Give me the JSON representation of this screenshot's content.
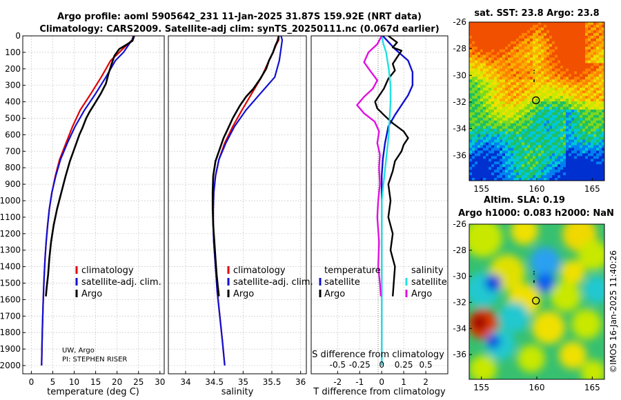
{
  "figure": {
    "title_line1": "Argo profile: aoml 5905642_231 11-Jan-2025 31.87S 159.92E (NRT data)",
    "title_line2": "Climatology: CARS2009. Satellite-adj clim: synTS_20250111.nc (0.067d earlier)",
    "credit_line1": "UW, Argo",
    "credit_line2": "PI: STEPHEN RISER",
    "copyright": "©IMOS 16-Jan-2025 11:40:26"
  },
  "colors": {
    "climatology": "#e00000",
    "satellite": "#1010d0",
    "argo": "#000000",
    "temp_diff": "#e010e0",
    "sal_diff": "#20e0e0"
  },
  "chart_data": [
    {
      "type": "line",
      "id": "temperature",
      "xlabel": "temperature (deg C)",
      "ylabel": "",
      "xlim": [
        -2,
        31
      ],
      "ylim": [
        2050,
        0
      ],
      "xticks": [
        0,
        5,
        10,
        15,
        20,
        25,
        30
      ],
      "yticks": [
        0,
        100,
        200,
        300,
        400,
        500,
        600,
        700,
        800,
        900,
        1000,
        1100,
        1200,
        1300,
        1400,
        1500,
        1600,
        1700,
        1800,
        1900,
        2000
      ],
      "grid": true,
      "legend": [
        "climatology",
        "satellite-adj. clim.",
        "Argo"
      ],
      "series": [
        {
          "name": "climatology",
          "x": [
            23.8,
            23.5,
            22.5,
            20.5,
            18.5,
            16.3,
            13.9,
            11.4,
            9.6,
            8.1,
            6.6,
            5.6,
            4.8,
            4.2,
            3.8,
            3.45,
            3.2,
            3.0,
            2.85,
            2.72,
            2.6,
            2.5,
            2.4
          ],
          "y": [
            0,
            25,
            50,
            100,
            150,
            250,
            350,
            450,
            550,
            650,
            750,
            850,
            950,
            1050,
            1150,
            1250,
            1350,
            1450,
            1550,
            1650,
            1750,
            1850,
            2000
          ]
        },
        {
          "name": "satellite-adj. clim.",
          "x": [
            23.9,
            23.5,
            22.8,
            21.5,
            19.6,
            17.4,
            15.0,
            12.4,
            10.2,
            8.4,
            6.8,
            5.7,
            4.8,
            4.2,
            3.8,
            3.45,
            3.2,
            3.0,
            2.85,
            2.72,
            2.6,
            2.5,
            2.4
          ],
          "y": [
            0,
            25,
            50,
            100,
            150,
            250,
            350,
            450,
            550,
            650,
            750,
            850,
            950,
            1050,
            1150,
            1250,
            1350,
            1450,
            1550,
            1650,
            1750,
            1850,
            2000
          ]
        },
        {
          "name": "Argo",
          "x": [
            24.0,
            23.6,
            22.4,
            20.5,
            19.4,
            18.6,
            18.0,
            17.4,
            16.2,
            14.8,
            13.6,
            12.8,
            11.9,
            11.2,
            10.1,
            9.0,
            8.0,
            7.0,
            6.0,
            5.2,
            4.6,
            4.2,
            3.9,
            3.6,
            3.4
          ],
          "y": [
            0,
            30,
            50,
            80,
            120,
            180,
            230,
            290,
            350,
            410,
            460,
            500,
            560,
            600,
            680,
            760,
            850,
            950,
            1050,
            1150,
            1250,
            1350,
            1450,
            1520,
            1580
          ]
        }
      ]
    },
    {
      "type": "line",
      "id": "salinity",
      "xlabel": "salinity",
      "ylabel": "",
      "xlim": [
        33.7,
        36.1
      ],
      "ylim": [
        2050,
        0
      ],
      "xticks": [
        34,
        34.5,
        35,
        35.5,
        36
      ],
      "grid": true,
      "legend": [
        "climatology",
        "satellite-adj. clim.",
        "Argo"
      ],
      "series": [
        {
          "name": "climatology",
          "x": [
            35.62,
            35.62,
            35.58,
            35.52,
            35.45,
            35.32,
            35.15,
            34.98,
            34.82,
            34.68,
            34.58,
            34.52,
            34.49,
            34.48,
            34.48,
            34.49,
            34.51,
            34.53,
            34.55,
            34.58,
            34.61,
            34.64,
            34.68
          ],
          "y": [
            0,
            25,
            50,
            100,
            150,
            250,
            350,
            450,
            550,
            650,
            750,
            850,
            950,
            1050,
            1150,
            1250,
            1350,
            1450,
            1550,
            1650,
            1750,
            1850,
            2000
          ]
        },
        {
          "name": "satellite-adj. clim.",
          "x": [
            35.66,
            35.68,
            35.67,
            35.65,
            35.63,
            35.55,
            35.3,
            35.05,
            34.85,
            34.7,
            34.58,
            34.52,
            34.49,
            34.48,
            34.48,
            34.49,
            34.51,
            34.53,
            34.55,
            34.58,
            34.61,
            34.64,
            34.68
          ],
          "y": [
            0,
            25,
            50,
            100,
            150,
            250,
            350,
            450,
            550,
            650,
            750,
            850,
            950,
            1050,
            1150,
            1250,
            1350,
            1450,
            1550,
            1650,
            1750,
            1850,
            2000
          ]
        },
        {
          "name": "Argo",
          "x": [
            35.62,
            35.6,
            35.56,
            35.52,
            35.45,
            35.4,
            35.3,
            35.18,
            35.05,
            34.95,
            34.9,
            34.82,
            34.74,
            34.66,
            34.6,
            34.52,
            34.48,
            34.47,
            34.47,
            34.48,
            34.5,
            34.52,
            34.54,
            34.56,
            34.58
          ],
          "y": [
            0,
            30,
            60,
            100,
            150,
            200,
            260,
            320,
            370,
            420,
            450,
            500,
            560,
            620,
            680,
            760,
            850,
            950,
            1050,
            1150,
            1250,
            1350,
            1450,
            1520,
            1580
          ]
        }
      ]
    },
    {
      "type": "line",
      "id": "differences",
      "xlabel": "T difference from climatology",
      "x2label": "S difference from climatology",
      "xlim": [
        -3.2,
        3.0
      ],
      "x2lim": [
        -0.8,
        0.75
      ],
      "ylim": [
        2050,
        0
      ],
      "xticks": [
        -2,
        -1,
        0,
        1,
        2
      ],
      "x2ticks": [
        -0.5,
        -0.25,
        0,
        0.25,
        0.5
      ],
      "grid": true,
      "legend_left_title": "temperature",
      "legend_right_title": "salinity",
      "legend_left": [
        "satellite",
        "Argo"
      ],
      "legend_right": [
        "satellite",
        "Argo"
      ],
      "series": [
        {
          "name": "temperature satellite",
          "axis": "T",
          "x": [
            0.05,
            0.6,
            1.2,
            1.4,
            1.4,
            1.2,
            0.9,
            0.6,
            0.3,
            0.15,
            0.05,
            0.0,
            0.0,
            0.0,
            0.0,
            0.0,
            0.0,
            0.0
          ],
          "y": [
            0,
            80,
            150,
            220,
            300,
            360,
            420,
            480,
            550,
            650,
            750,
            850,
            1000,
            1200,
            1400,
            1600,
            1800,
            2000
          ]
        },
        {
          "name": "temperature Argo",
          "axis": "T",
          "x": [
            0.3,
            0.7,
            0.5,
            0.9,
            0.7,
            0.5,
            0.6,
            0.3,
            0.1,
            -0.1,
            -0.3,
            -0.2,
            0.1,
            0.5,
            1.0,
            1.2,
            1.0,
            0.9,
            0.6,
            0.5,
            0.3,
            0.4,
            0.3,
            0.5,
            0.4,
            0.6,
            0.5
          ],
          "y": [
            0,
            40,
            70,
            90,
            130,
            170,
            210,
            260,
            320,
            360,
            400,
            440,
            480,
            530,
            580,
            620,
            660,
            700,
            760,
            820,
            900,
            1000,
            1100,
            1200,
            1300,
            1400,
            1580
          ]
        },
        {
          "name": "salinity satellite",
          "axis": "S",
          "x": [
            0.0,
            0.02,
            0.05,
            0.08,
            0.1,
            0.1,
            0.09,
            0.08,
            0.06,
            0.04,
            0.02,
            0.0,
            0.0,
            0.0,
            0.0,
            0.0,
            0.0
          ],
          "y": [
            0,
            50,
            100,
            200,
            300,
            400,
            500,
            600,
            700,
            800,
            900,
            1000,
            1200,
            1400,
            1600,
            1800,
            2000
          ]
        },
        {
          "name": "salinity Argo",
          "axis": "S",
          "x": [
            0.0,
            -0.05,
            -0.15,
            -0.2,
            -0.12,
            -0.05,
            -0.1,
            -0.2,
            -0.28,
            -0.2,
            -0.08,
            -0.03,
            -0.05,
            -0.02,
            -0.03,
            -0.02,
            -0.04,
            -0.05,
            -0.03,
            -0.04,
            -0.02,
            -0.01
          ],
          "y": [
            0,
            50,
            100,
            160,
            220,
            270,
            320,
            370,
            420,
            470,
            520,
            580,
            650,
            720,
            800,
            900,
            1000,
            1100,
            1250,
            1400,
            1500,
            1580
          ]
        }
      ]
    },
    {
      "type": "heatmap",
      "id": "sst-map",
      "title": "sat. SST: 23.8 Argo: 23.8",
      "xlim": [
        153.9,
        166.1
      ],
      "ylim": [
        -37.9,
        -26.0
      ],
      "xticks": [
        155,
        160,
        165
      ],
      "yticks": [
        -26,
        -28,
        -30,
        -32,
        -34,
        -36
      ],
      "float_position": {
        "lon": 159.92,
        "lat": -31.87
      }
    },
    {
      "type": "heatmap",
      "id": "sla-map",
      "title_line1": "Altim. SLA: 0.19",
      "title_line2": "Argo h1000: 0.083 h2000: NaN",
      "xlim": [
        153.9,
        166.1
      ],
      "ylim": [
        -37.9,
        -26.0
      ],
      "xticks": [
        155,
        160,
        165
      ],
      "yticks": [
        -26,
        -28,
        -30,
        -32,
        -34,
        -36
      ],
      "float_position": {
        "lon": 159.92,
        "lat": -31.87
      }
    }
  ]
}
